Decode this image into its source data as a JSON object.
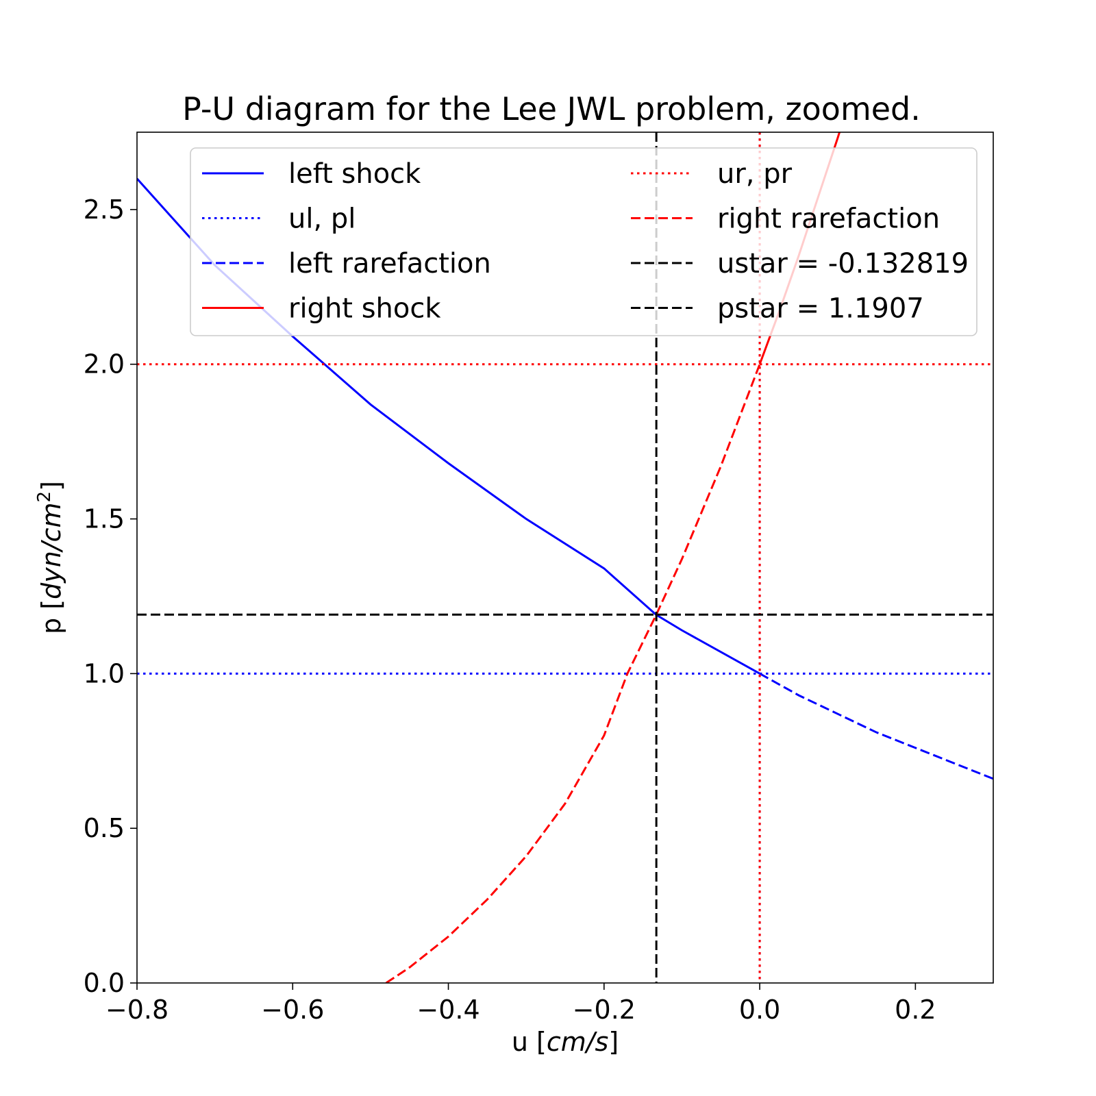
{
  "chart_data": {
    "type": "line",
    "title": "P-U diagram for the Lee JWL problem, zoomed.",
    "xlabel": {
      "prefix": "u [",
      "unit": "cm/s",
      "suffix": "]"
    },
    "ylabel": {
      "prefix": "p [",
      "unit": "dyn/cm",
      "sup": "2",
      "suffix": "]"
    },
    "xlim": [
      -0.8,
      0.3
    ],
    "ylim": [
      0.0,
      2.75
    ],
    "xticks": [
      -0.8,
      -0.6,
      -0.4,
      -0.2,
      0.0,
      0.2
    ],
    "xtick_labels": [
      "−0.8",
      "−0.6",
      "−0.4",
      "−0.2",
      "0.0",
      "0.2"
    ],
    "yticks": [
      0.0,
      0.5,
      1.0,
      1.5,
      2.0,
      2.5
    ],
    "ytick_labels": [
      "0.0",
      "0.5",
      "1.0",
      "1.5",
      "2.0",
      "2.5"
    ],
    "grid": false,
    "legend_position": "top",
    "legend_columns": 2,
    "colors": {
      "left": "#0000ff",
      "right": "#ff0000",
      "star": "#000000"
    },
    "series": [
      {
        "name": "left shock",
        "color": "#0000ff",
        "style": "solid",
        "x": [
          -0.8,
          -0.7,
          -0.6,
          -0.5,
          -0.4,
          -0.3,
          -0.2,
          -0.133,
          -0.1,
          0.0
        ],
        "y": [
          2.6,
          2.32,
          2.09,
          1.87,
          1.68,
          1.5,
          1.34,
          1.19,
          1.14,
          1.0
        ]
      },
      {
        "name": "ul, pl",
        "color": "#0000ff",
        "style": "dotted",
        "hline": 1.0,
        "vline": 0.0
      },
      {
        "name": "left rarefaction",
        "color": "#0000ff",
        "style": "dashed",
        "x": [
          0.0,
          0.05,
          0.1,
          0.15,
          0.2,
          0.25,
          0.3
        ],
        "y": [
          1.0,
          0.93,
          0.87,
          0.81,
          0.76,
          0.71,
          0.66
        ]
      },
      {
        "name": "right shock",
        "color": "#ff0000",
        "style": "solid",
        "x": [
          0.0,
          0.025,
          0.05,
          0.075,
          0.1,
          0.105
        ],
        "y": [
          2.0,
          2.17,
          2.35,
          2.54,
          2.73,
          2.77
        ]
      },
      {
        "name": "ur, pr",
        "color": "#ff0000",
        "style": "dotted",
        "hline": 2.0,
        "vline": 0.0
      },
      {
        "name": "right rarefaction",
        "color": "#ff0000",
        "style": "dashed",
        "x": [
          -0.48,
          -0.45,
          -0.4,
          -0.35,
          -0.3,
          -0.25,
          -0.2,
          -0.17,
          -0.133,
          -0.1,
          -0.05,
          0.0
        ],
        "y": [
          0.0,
          0.05,
          0.15,
          0.27,
          0.41,
          0.58,
          0.8,
          1.0,
          1.19,
          1.37,
          1.67,
          2.0
        ]
      },
      {
        "name": "ustar = -0.132819",
        "color": "#000000",
        "style": "dashed",
        "vline": -0.132819
      },
      {
        "name": "pstar = 1.1907",
        "color": "#000000",
        "style": "dashed",
        "hline": 1.1907
      }
    ]
  }
}
